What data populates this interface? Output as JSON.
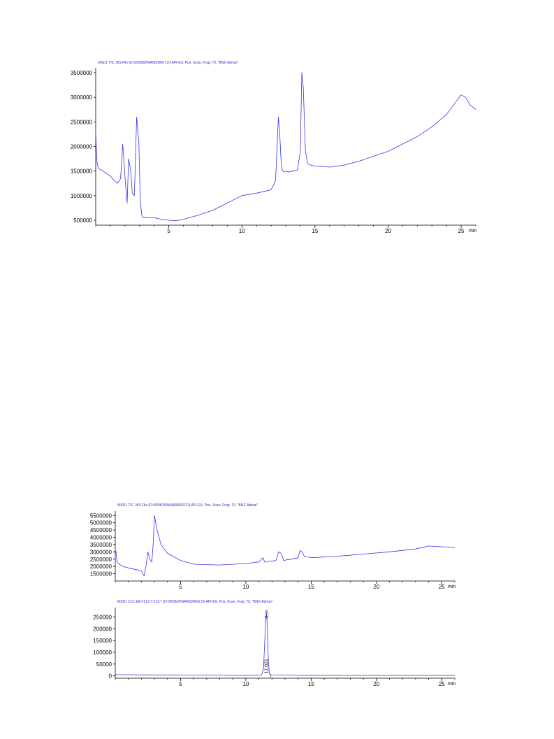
{
  "chart_data": [
    {
      "type": "line",
      "title": "MSD1 TIC, MS File (D:\\060928\\NAN000007.D)    API-ES, Pos, Scan, Frag: 70, \"BNZ-Adnan\"",
      "xlabel": "min",
      "ylabel": "",
      "xlim": [
        0,
        26
      ],
      "ylim": [
        400000,
        3600000
      ],
      "xticks": [
        5,
        10,
        15,
        20,
        25
      ],
      "yticks": [
        500000,
        1000000,
        1500000,
        2000000,
        2500000,
        3000000,
        3500000
      ],
      "grid": false,
      "series": [
        {
          "x": [
            0,
            0.05,
            0.1,
            0.2,
            0.5,
            1.0,
            1.3,
            1.5,
            1.7,
            1.85,
            1.95,
            2.05,
            2.15,
            2.25,
            2.4,
            2.5,
            2.65,
            2.8,
            2.95,
            3.05,
            3.15,
            3.25,
            3.4,
            3.6,
            4.0,
            4.5,
            5.0,
            5.5,
            6.0,
            7.0,
            8.0,
            9.0,
            10.0,
            11.0,
            12.0,
            12.3,
            12.5,
            12.6,
            12.7,
            12.8,
            12.9,
            13.0,
            13.2,
            13.5,
            13.8,
            14.0,
            14.1,
            14.2,
            14.35,
            14.5,
            14.7,
            15.0,
            16.0,
            17.0,
            18.0,
            19.0,
            20.0,
            21.0,
            22.0,
            23.0,
            24.0,
            24.5,
            25.0,
            25.3,
            25.6,
            26.0
          ],
          "y": [
            2300000,
            1900000,
            1650000,
            1550000,
            1500000,
            1400000,
            1300000,
            1250000,
            1350000,
            2050000,
            1600000,
            1200000,
            850000,
            1750000,
            1500000,
            1050000,
            1000000,
            2600000,
            2100000,
            900000,
            600000,
            550000,
            560000,
            550000,
            550000,
            520000,
            500000,
            490000,
            520000,
            600000,
            700000,
            850000,
            1000000,
            1050000,
            1120000,
            1300000,
            2600000,
            2200000,
            1600000,
            1500000,
            1480000,
            1500000,
            1480000,
            1500000,
            1520000,
            1900000,
            3500000,
            3200000,
            1900000,
            1650000,
            1620000,
            1600000,
            1580000,
            1620000,
            1700000,
            1800000,
            1900000,
            2050000,
            2200000,
            2400000,
            2650000,
            2850000,
            3050000,
            3000000,
            2850000,
            2750000
          ]
        }
      ]
    },
    {
      "type": "line",
      "title": "MSD1 TIC, MS File (D:\\060818\\NAN000002.D)    API-ES, Pos, Scan, Frag: 70, \"BNZ-Adnan\"",
      "xlabel": "min",
      "ylabel": "",
      "xlim": [
        0,
        26
      ],
      "ylim": [
        1000000,
        5800000
      ],
      "xticks": [
        5,
        10,
        15,
        20,
        25
      ],
      "yticks": [
        1500000,
        2000000,
        2500000,
        3000000,
        3500000,
        4000000,
        4500000,
        5000000,
        5500000
      ],
      "grid": false,
      "series": [
        {
          "x": [
            0,
            0.05,
            0.15,
            0.3,
            0.6,
            1.0,
            1.5,
            2.0,
            2.1,
            2.2,
            2.35,
            2.5,
            2.65,
            2.8,
            2.9,
            3.0,
            3.2,
            3.5,
            4.0,
            5.0,
            6.0,
            8.0,
            10.0,
            11.0,
            11.3,
            11.45,
            11.6,
            11.8,
            12.3,
            12.5,
            12.7,
            12.9,
            13.1,
            13.5,
            14.0,
            14.15,
            14.3,
            14.5,
            14.8,
            15.0,
            17.0,
            19.0,
            21.0,
            23.0,
            24.0,
            25.0,
            26.0
          ],
          "y": [
            2900000,
            3050000,
            2300000,
            2150000,
            2000000,
            1900000,
            1800000,
            1700000,
            1500000,
            1350000,
            2000000,
            3000000,
            2500000,
            2300000,
            3500000,
            5500000,
            4500000,
            3500000,
            2900000,
            2400000,
            2150000,
            2100000,
            2200000,
            2300000,
            2600000,
            2300000,
            2300000,
            2350000,
            2400000,
            3000000,
            2900000,
            2400000,
            2450000,
            2500000,
            2600000,
            3100000,
            3000000,
            2650000,
            2650000,
            2600000,
            2700000,
            2850000,
            3000000,
            3200000,
            3400000,
            3350000,
            3300000
          ]
        }
      ]
    },
    {
      "type": "line",
      "title": "MSD1 213, EIC=212.7:213.7 (D:\\060818\\NAN000002.D)    API-ES, Pos, Scan, Frag: 70, \"BNZ-Adnan\"",
      "xlabel": "min",
      "ylabel": "",
      "xlim": [
        0,
        26
      ],
      "ylim": [
        -10000,
        290000
      ],
      "xticks": [
        5,
        10,
        15,
        20,
        25
      ],
      "yticks": [
        0,
        50000,
        100000,
        150000,
        200000,
        250000
      ],
      "grid": false,
      "annotations": [
        {
          "text": "11.58",
          "x": 11.58
        },
        {
          "text": "12.021",
          "x": 12.021
        }
      ],
      "series": [
        {
          "x": [
            0,
            5,
            10,
            11.2,
            11.35,
            11.45,
            11.52,
            11.58,
            11.65,
            11.72,
            11.8,
            12.0,
            15,
            20,
            26
          ],
          "y": [
            5000,
            3000,
            2000,
            3000,
            30000,
            150000,
            250000,
            262000,
            200000,
            60000,
            8000,
            3000,
            2000,
            2000,
            2000
          ]
        }
      ]
    }
  ]
}
